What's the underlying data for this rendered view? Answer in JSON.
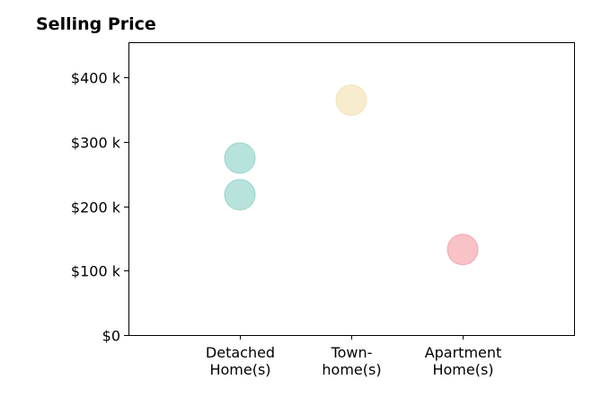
{
  "chart_data": {
    "type": "scatter",
    "title": "Selling Price",
    "xlabel": "",
    "ylabel": "",
    "categories": [
      [
        "Detached",
        "Home(s)"
      ],
      [
        "Town-",
        "home(s)"
      ],
      [
        "Apartment",
        "Home(s)"
      ]
    ],
    "y_ticks": [
      0,
      100000,
      200000,
      300000,
      400000
    ],
    "y_tick_labels": [
      "$0",
      "$100 k",
      "$200 k",
      "$300 k",
      "$400 k"
    ],
    "ylim": [
      0,
      455000
    ],
    "grid": false,
    "points": [
      {
        "category": 0,
        "y": 275000,
        "color": "#7ecbc0"
      },
      {
        "category": 0,
        "y": 218000,
        "color": "#7ecbc0"
      },
      {
        "category": 1,
        "y": 365000,
        "color": "#f2dca8"
      },
      {
        "category": 2,
        "y": 133000,
        "color": "#f28f99"
      }
    ]
  }
}
